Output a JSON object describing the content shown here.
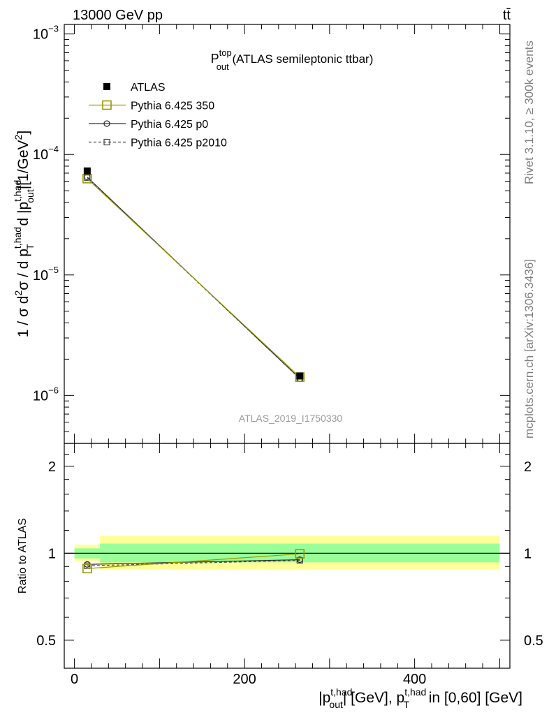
{
  "header": {
    "beam": "13000 GeV pp",
    "process": "tt̄"
  },
  "side_labels": {
    "rivet": "Rivet 3.1.10, ≥ 300k events",
    "mcplots": "mcplots.cern.ch [arXiv:1306.3436]"
  },
  "chart_data": [
    {
      "type": "line",
      "panel": "main",
      "title": {
        "main": "P",
        "sup": "top",
        "sub": "out",
        "rest": " (ATLAS semileptonic ttbar)"
      },
      "watermark": "ATLAS_2019_I1750330",
      "ylabel": "1 / σ d²σ / d pT^t,had d |pout^t,had| [1/GeV²]",
      "yscale": "log",
      "ylim": [
        4e-07,
        0.0012
      ],
      "xlim": [
        -12,
        512
      ],
      "yticks": [
        {
          "value": 1e-06,
          "mant": "10",
          "exp": "−6"
        },
        {
          "value": 1e-05,
          "mant": "10",
          "exp": "−5"
        },
        {
          "value": 0.0001,
          "mant": "10",
          "exp": "−4"
        },
        {
          "value": 0.001,
          "mant": "10",
          "exp": "−3"
        }
      ],
      "legend_position": "top-left",
      "legend": [
        {
          "label": "ATLAS",
          "marker": "filled-square",
          "color": "#000000",
          "dash": "none"
        },
        {
          "label": "Pythia 6.425 350",
          "marker": "open-square",
          "color": "#999900",
          "dash": "solid"
        },
        {
          "label": "Pythia 6.425 p0",
          "marker": "open-circle",
          "color": "#333333",
          "dash": "solid"
        },
        {
          "label": "Pythia 6.425 p2010",
          "marker": "open-square-small",
          "color": "#444444",
          "dash": "dashed"
        }
      ],
      "series": [
        {
          "name": "ATLAS",
          "x": [
            15,
            265
          ],
          "y": [
            7.3e-05,
            1.45e-06
          ]
        },
        {
          "name": "Pythia 6.425 350",
          "x": [
            15,
            265
          ],
          "y": [
            6.3e-05,
            1.42e-06
          ]
        },
        {
          "name": "Pythia 6.425 p0",
          "x": [
            15,
            265
          ],
          "y": [
            6.5e-05,
            1.38e-06
          ]
        },
        {
          "name": "Pythia 6.425 p2010",
          "x": [
            15,
            265
          ],
          "y": [
            6.4e-05,
            1.38e-06
          ]
        }
      ]
    },
    {
      "type": "line",
      "panel": "ratio",
      "ylabel": "Ratio to ATLAS",
      "xlabel": "|pout^t,had| [GeV], pT^t,had in [0,60] [GeV]",
      "yscale": "log",
      "ylim": [
        0.4,
        2.4
      ],
      "xlim": [
        -12,
        512
      ],
      "yticks": [
        {
          "value": 0.5,
          "label": "0.5"
        },
        {
          "value": 1,
          "label": "1"
        },
        {
          "value": 2,
          "label": "2"
        }
      ],
      "xticks": [
        {
          "value": 0,
          "label": "0"
        },
        {
          "value": 200,
          "label": "200"
        },
        {
          "value": 400,
          "label": "400"
        }
      ],
      "bands": [
        {
          "x": [
            0,
            30
          ],
          "green": [
            0.96,
            1.04
          ],
          "yellow": [
            0.94,
            1.07
          ]
        },
        {
          "x": [
            30,
            500
          ],
          "green": [
            0.93,
            1.08
          ],
          "yellow": [
            0.88,
            1.15
          ]
        }
      ],
      "series": [
        {
          "name": "Pythia 6.425 350",
          "x": [
            15,
            265
          ],
          "y": [
            0.885,
            0.995
          ]
        },
        {
          "name": "Pythia 6.425 p0",
          "x": [
            15,
            265
          ],
          "y": [
            0.915,
            0.95
          ]
        },
        {
          "name": "Pythia 6.425 p2010",
          "x": [
            15,
            265
          ],
          "y": [
            0.905,
            0.945
          ]
        }
      ]
    }
  ]
}
